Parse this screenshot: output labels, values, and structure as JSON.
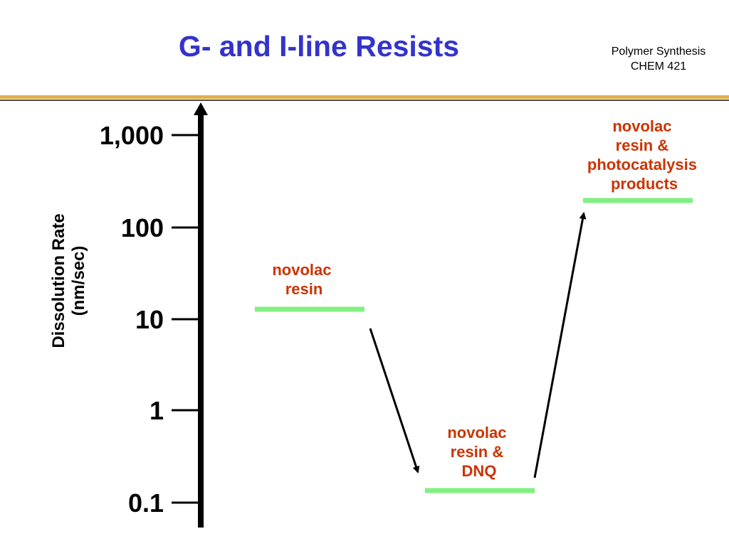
{
  "header": {
    "title": "G- and I-line Resists",
    "course_line1": "Polymer Synthesis",
    "course_line2": "CHEM 421"
  },
  "colors": {
    "title": "#3333cc",
    "rule_gold": "#ddb14b",
    "rule_dark": "#4a4a4a",
    "level": "#80f080",
    "state_label": "#cc3300",
    "axis": "#000000"
  },
  "diagram": {
    "axis_title_line1": "Dissolution Rate",
    "axis_title_line2": "(nm/sec)",
    "ticks": [
      "1,000",
      "100",
      "10",
      "1",
      "0.1"
    ],
    "states": [
      {
        "label_lines": [
          "novolac",
          "resin"
        ],
        "rate": 13
      },
      {
        "label_lines": [
          "novolac",
          "resin &",
          "DNQ"
        ],
        "rate": 0.14
      },
      {
        "label_lines": [
          "novolac",
          "resin &",
          "photocatalysis",
          "products"
        ],
        "rate": 200
      }
    ]
  }
}
